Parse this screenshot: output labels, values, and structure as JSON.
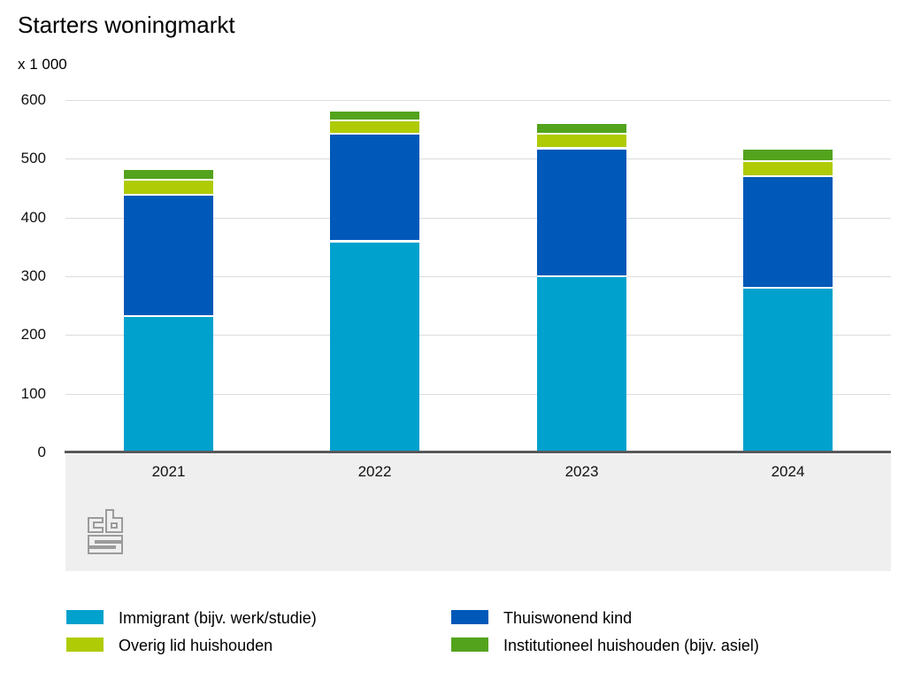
{
  "chart": {
    "title": "Starters woningmarkt",
    "unit": "x 1 000"
  },
  "logo": {
    "name": "cbs-logo"
  },
  "chart_data": {
    "type": "bar",
    "stacked": true,
    "title": "Starters woningmarkt",
    "unit_label": "x 1 000",
    "xlabel": "",
    "ylabel": "",
    "ylim": [
      0,
      600
    ],
    "yticks": [
      0,
      100,
      200,
      300,
      400,
      500,
      600
    ],
    "grid": true,
    "legend_position": "bottom",
    "categories": [
      "2021",
      "2022",
      "2023",
      "2024"
    ],
    "series": [
      {
        "name": "Immigrant (bijv. werk/studie)",
        "color": "#00a1cd",
        "values": [
          230,
          358,
          299,
          279
        ]
      },
      {
        "name": "Thuiswonend kind",
        "color": "#0058b8",
        "values": [
          207,
          184,
          217,
          191
        ]
      },
      {
        "name": "Overig lid huishouden",
        "color": "#afcb05",
        "values": [
          26,
          22,
          26,
          25
        ]
      },
      {
        "name": "Institutioneel huishouden (bijv. asiel)",
        "color": "#53a31d",
        "values": [
          18,
          17,
          18,
          21
        ]
      }
    ],
    "totals": [
      481,
      581,
      560,
      516
    ],
    "colors": {
      "gridline": "#dcdcdc",
      "axis_line": "#58595b",
      "plot_band": "#efefef",
      "text": "#000000"
    }
  }
}
